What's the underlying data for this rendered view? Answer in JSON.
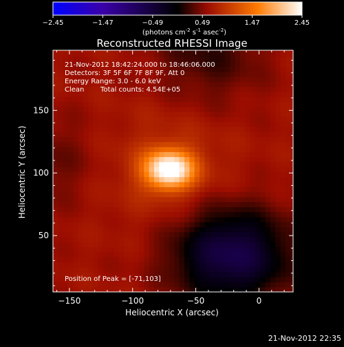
{
  "colorbar": {
    "ticks": [
      "-2.45",
      "-1.47",
      "-0.49",
      "0.49",
      "1.47",
      "2.45"
    ],
    "tick_values": [
      -2.45,
      -1.47,
      -0.49,
      0.49,
      1.47,
      2.45
    ],
    "range": [
      -2.45,
      2.45
    ],
    "unit_label_parts": [
      "(photons cm",
      "-2",
      " s",
      "-1",
      " asec",
      "-2",
      ")"
    ]
  },
  "title": "Reconstructed RHESSI Image",
  "info": {
    "line1": "21-Nov-2012 18:42:24.000 to 18:46:06.000",
    "line2": "Detectors: 3F 5F 6F 7F 8F 9F, Att 0",
    "line3": "Energy Range: 3.0 - 6.0 keV",
    "line4_method": "Clean",
    "line4_counts": "Total counts: 4.54E+05"
  },
  "peak_label": "Position of Peak = [-71,103]",
  "footer_timestamp": "21-Nov-2012 22:35",
  "chart_data": {
    "type": "heatmap",
    "title": "Reconstructed RHESSI Image",
    "xlabel": "Heliocentric X (arcsec)",
    "ylabel": "Heliocentric Y (arcsec)",
    "xlim": [
      -163,
      27
    ],
    "ylim": [
      5,
      198
    ],
    "x_ticks": [
      -150,
      -100,
      -50,
      0
    ],
    "y_ticks": [
      50,
      100,
      150
    ],
    "x_tick_labels": [
      "−150",
      "−100",
      "−50",
      "0"
    ],
    "y_tick_labels": [
      "50",
      "100",
      "150"
    ],
    "peak": {
      "x": -71,
      "y": 103,
      "value": 2.45
    },
    "background_level": 0.49,
    "colormap": "black-blue-purple-red-yellow-white",
    "colormap_stops": [
      "#0000ff",
      "#3a00a8",
      "#000000",
      "#9b0d00",
      "#ff7a00",
      "#ffffff"
    ],
    "colorbar_position": "top"
  }
}
